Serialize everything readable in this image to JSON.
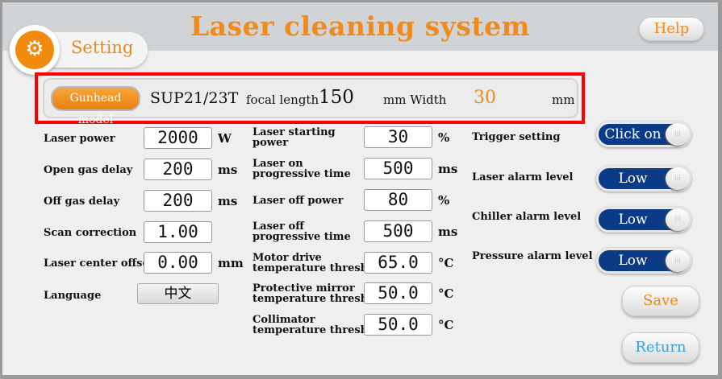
{
  "header": {
    "title": "Laser cleaning system",
    "help_label": "Help",
    "tab_label": "Setting",
    "tab_icon": "gears-icon"
  },
  "gunhead": {
    "button_label": "Gunhead model",
    "model": "SUP21/23T",
    "focal_label": "focal length",
    "focal_value": "150",
    "mm_width_label": "mm Width",
    "width_value": "30",
    "width_unit": "mm"
  },
  "left": [
    {
      "label": "Laser power",
      "value": "2000",
      "unit": "W"
    },
    {
      "label": "Open gas delay",
      "value": "200",
      "unit": "ms"
    },
    {
      "label": "Off gas delay",
      "value": "200",
      "unit": "ms"
    },
    {
      "label": "Scan correction",
      "value": "1.00",
      "unit": ""
    },
    {
      "label": "Laser center offset",
      "value": "0.00",
      "unit": "mm"
    }
  ],
  "language": {
    "label": "Language",
    "value": "中文"
  },
  "middle": [
    {
      "label1": "Laser starting",
      "label2": "power",
      "value": "30",
      "unit": "%"
    },
    {
      "label1": "Laser on",
      "label2": "progressive time",
      "value": "500",
      "unit": "ms"
    },
    {
      "label1": "Laser off power",
      "label2": "",
      "value": "80",
      "unit": "%"
    },
    {
      "label1": "Laser off",
      "label2": "progressive time",
      "value": "500",
      "unit": "ms"
    },
    {
      "label1": "Motor drive",
      "label2": "temperature threshold",
      "value": "65.0",
      "unit": "°C"
    },
    {
      "label1": "Protective mirror",
      "label2": "temperature threshold",
      "value": "50.0",
      "unit": "°C"
    },
    {
      "label1": "Collimator",
      "label2": "temperature threshold",
      "value": "50.0",
      "unit": "°C"
    }
  ],
  "right": [
    {
      "label": "Trigger setting",
      "toggle": "Click on"
    },
    {
      "label": "Laser alarm level",
      "toggle": "Low"
    },
    {
      "label": "Chiller alarm level",
      "toggle": "Low"
    },
    {
      "label": "Pressure alarm level",
      "toggle": "Low"
    }
  ],
  "buttons": {
    "save": "Save",
    "return": "Return"
  },
  "colors": {
    "accent": "#f08a1c",
    "toggle": "#0b3a87",
    "highlight": "#ff0000",
    "return": "#3aa0de"
  }
}
